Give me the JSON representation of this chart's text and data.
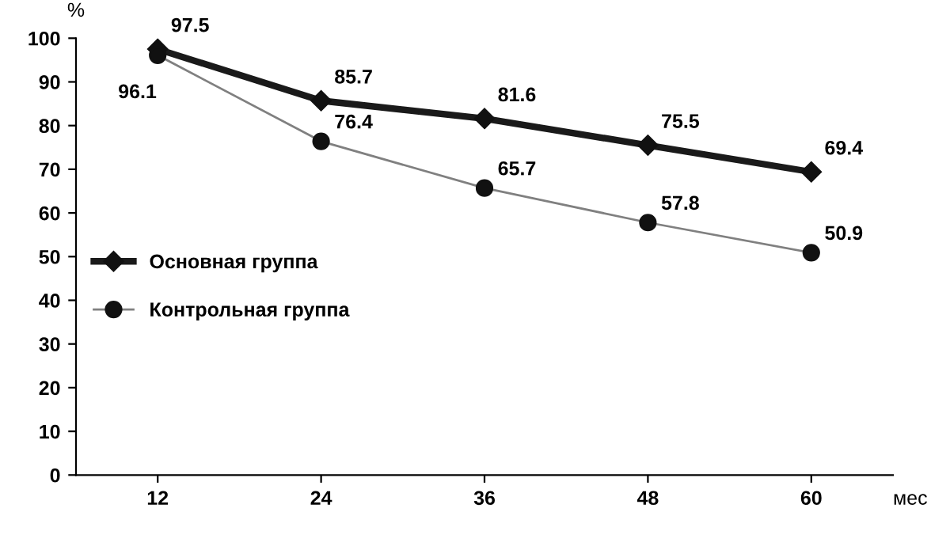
{
  "chart_data": {
    "type": "line",
    "xlabel": "мес",
    "ylabel": "%",
    "categories": [
      "12",
      "24",
      "36",
      "48",
      "60"
    ],
    "series": [
      {
        "name": "Основная группа",
        "color": "#1a1a1a",
        "marker": "diamond",
        "values": [
          97.5,
          85.7,
          81.6,
          75.5,
          69.4
        ]
      },
      {
        "name": "Контрольная группа",
        "color": "#808080",
        "marker": "circle",
        "values": [
          96.1,
          76.4,
          65.7,
          57.8,
          50.9
        ]
      }
    ],
    "ylim": [
      0,
      100
    ],
    "yticks": [
      0,
      10,
      20,
      30,
      40,
      50,
      60,
      70,
      80,
      90,
      100
    ],
    "data_labels": true,
    "legend": "center left",
    "grid": false
  }
}
